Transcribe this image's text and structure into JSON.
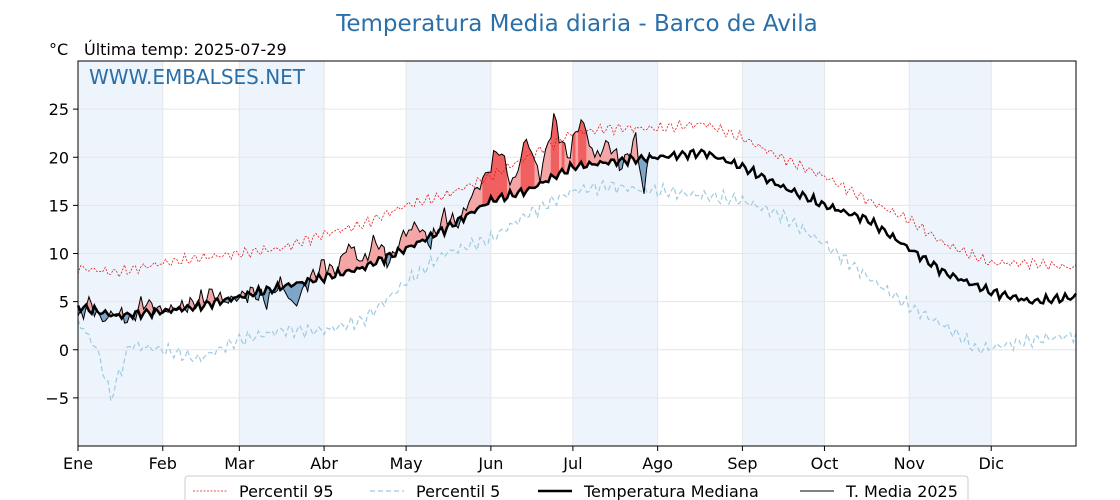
{
  "chart_data": {
    "type": "line",
    "title": "Temperatura Media diaria - Barco de Avila",
    "unit_label": "°C",
    "last_temp_label": "Última temp: 2025-07-29",
    "watermark": "WWW.EMBALSES.NET",
    "ylim": [
      -10,
      30
    ],
    "yticks": [
      -5,
      0,
      5,
      10,
      15,
      20,
      25
    ],
    "ytick_labels": [
      "−5",
      "0",
      "5",
      "10",
      "15",
      "20",
      "25"
    ],
    "xlim": [
      1,
      366
    ],
    "months": [
      {
        "label": "Ene",
        "start": 1
      },
      {
        "label": "Feb",
        "start": 32
      },
      {
        "label": "Mar",
        "start": 60
      },
      {
        "label": "Abr",
        "start": 91
      },
      {
        "label": "May",
        "start": 121
      },
      {
        "label": "Jun",
        "start": 152
      },
      {
        "label": "Jul",
        "start": 182
      },
      {
        "label": "Ago",
        "start": 213
      },
      {
        "label": "Sep",
        "start": 244
      },
      {
        "label": "Oct",
        "start": 274
      },
      {
        "label": "Nov",
        "start": 305
      },
      {
        "label": "Dic",
        "start": 335
      }
    ],
    "colors": {
      "p95": "#e31a1c",
      "p5": "#9ecae1",
      "median": "#000000",
      "current": "#000000",
      "above_fill": "#f4a6a6",
      "above_strong": "#f06060",
      "below_fill": "#7ea6c9",
      "band_a": "#eef4fb",
      "band_b": "#ffffff",
      "title": "#2b6fa8",
      "watermark": "#2b6fa8"
    },
    "legend": {
      "placement": "bottom-center",
      "entries": [
        {
          "label": "Percentil 95",
          "series": "p95"
        },
        {
          "label": "Percentil 5",
          "series": "p5"
        },
        {
          "label": "Temperatura Mediana",
          "series": "median"
        },
        {
          "label": "T. Media 2025",
          "series": "current"
        }
      ]
    },
    "series_keypoints": {
      "median": [
        [
          1,
          4.5
        ],
        [
          15,
          3.5
        ],
        [
          32,
          4
        ],
        [
          45,
          4.5
        ],
        [
          60,
          5.5
        ],
        [
          75,
          6.5
        ],
        [
          91,
          7.5
        ],
        [
          105,
          8.5
        ],
        [
          121,
          10.5
        ],
        [
          135,
          12.5
        ],
        [
          152,
          15.5
        ],
        [
          165,
          16.5
        ],
        [
          182,
          19
        ],
        [
          195,
          19.5
        ],
        [
          213,
          20
        ],
        [
          230,
          20.5
        ],
        [
          244,
          19
        ],
        [
          258,
          17
        ],
        [
          274,
          15
        ],
        [
          290,
          13.5
        ],
        [
          305,
          10.5
        ],
        [
          318,
          8
        ],
        [
          335,
          6
        ],
        [
          350,
          5
        ],
        [
          366,
          5.5
        ]
      ],
      "p95": [
        [
          1,
          8.5
        ],
        [
          15,
          8
        ],
        [
          32,
          9
        ],
        [
          45,
          9.5
        ],
        [
          60,
          10
        ],
        [
          75,
          10.5
        ],
        [
          91,
          12
        ],
        [
          105,
          13
        ],
        [
          121,
          15
        ],
        [
          135,
          16
        ],
        [
          152,
          18
        ],
        [
          165,
          20
        ],
        [
          182,
          22.5
        ],
        [
          195,
          23
        ],
        [
          213,
          23
        ],
        [
          230,
          23.5
        ],
        [
          244,
          22
        ],
        [
          258,
          20
        ],
        [
          274,
          18
        ],
        [
          290,
          15.5
        ],
        [
          305,
          13.5
        ],
        [
          318,
          11
        ],
        [
          335,
          9
        ],
        [
          350,
          9
        ],
        [
          366,
          8.5
        ]
      ],
      "p5": [
        [
          1,
          3
        ],
        [
          8,
          0
        ],
        [
          13,
          -5
        ],
        [
          20,
          0.5
        ],
        [
          32,
          0
        ],
        [
          45,
          -1
        ],
        [
          60,
          1
        ],
        [
          75,
          2
        ],
        [
          91,
          2
        ],
        [
          105,
          3
        ],
        [
          121,
          7
        ],
        [
          135,
          10
        ],
        [
          152,
          11.5
        ],
        [
          165,
          14
        ],
        [
          182,
          16.5
        ],
        [
          195,
          17
        ],
        [
          213,
          16.5
        ],
        [
          230,
          16
        ],
        [
          244,
          15.5
        ],
        [
          258,
          14
        ],
        [
          274,
          11
        ],
        [
          290,
          7.5
        ],
        [
          305,
          4.5
        ],
        [
          318,
          2.5
        ],
        [
          330,
          0
        ],
        [
          350,
          1
        ],
        [
          366,
          1.5
        ]
      ],
      "current": [
        [
          1,
          3
        ],
        [
          5,
          5
        ],
        [
          10,
          3
        ],
        [
          15,
          4
        ],
        [
          20,
          3
        ],
        [
          25,
          5
        ],
        [
          32,
          4
        ],
        [
          40,
          4.5
        ],
        [
          45,
          5
        ],
        [
          50,
          6
        ],
        [
          55,
          5
        ],
        [
          60,
          5.5
        ],
        [
          65,
          6
        ],
        [
          70,
          5
        ],
        [
          75,
          7
        ],
        [
          80,
          4.5
        ],
        [
          85,
          7
        ],
        [
          91,
          9
        ],
        [
          95,
          8
        ],
        [
          100,
          11
        ],
        [
          105,
          9
        ],
        [
          110,
          11.5
        ],
        [
          115,
          9
        ],
        [
          120,
          12
        ],
        [
          125,
          13
        ],
        [
          130,
          11
        ],
        [
          135,
          14
        ],
        [
          140,
          13
        ],
        [
          145,
          16
        ],
        [
          150,
          18
        ],
        [
          155,
          21
        ],
        [
          160,
          17
        ],
        [
          165,
          22
        ],
        [
          170,
          18
        ],
        [
          175,
          24
        ],
        [
          180,
          20
        ],
        [
          185,
          24
        ],
        [
          190,
          20
        ],
        [
          195,
          21.5
        ],
        [
          200,
          19
        ],
        [
          205,
          22
        ],
        [
          208,
          16
        ],
        [
          210,
          21
        ]
      ]
    }
  }
}
